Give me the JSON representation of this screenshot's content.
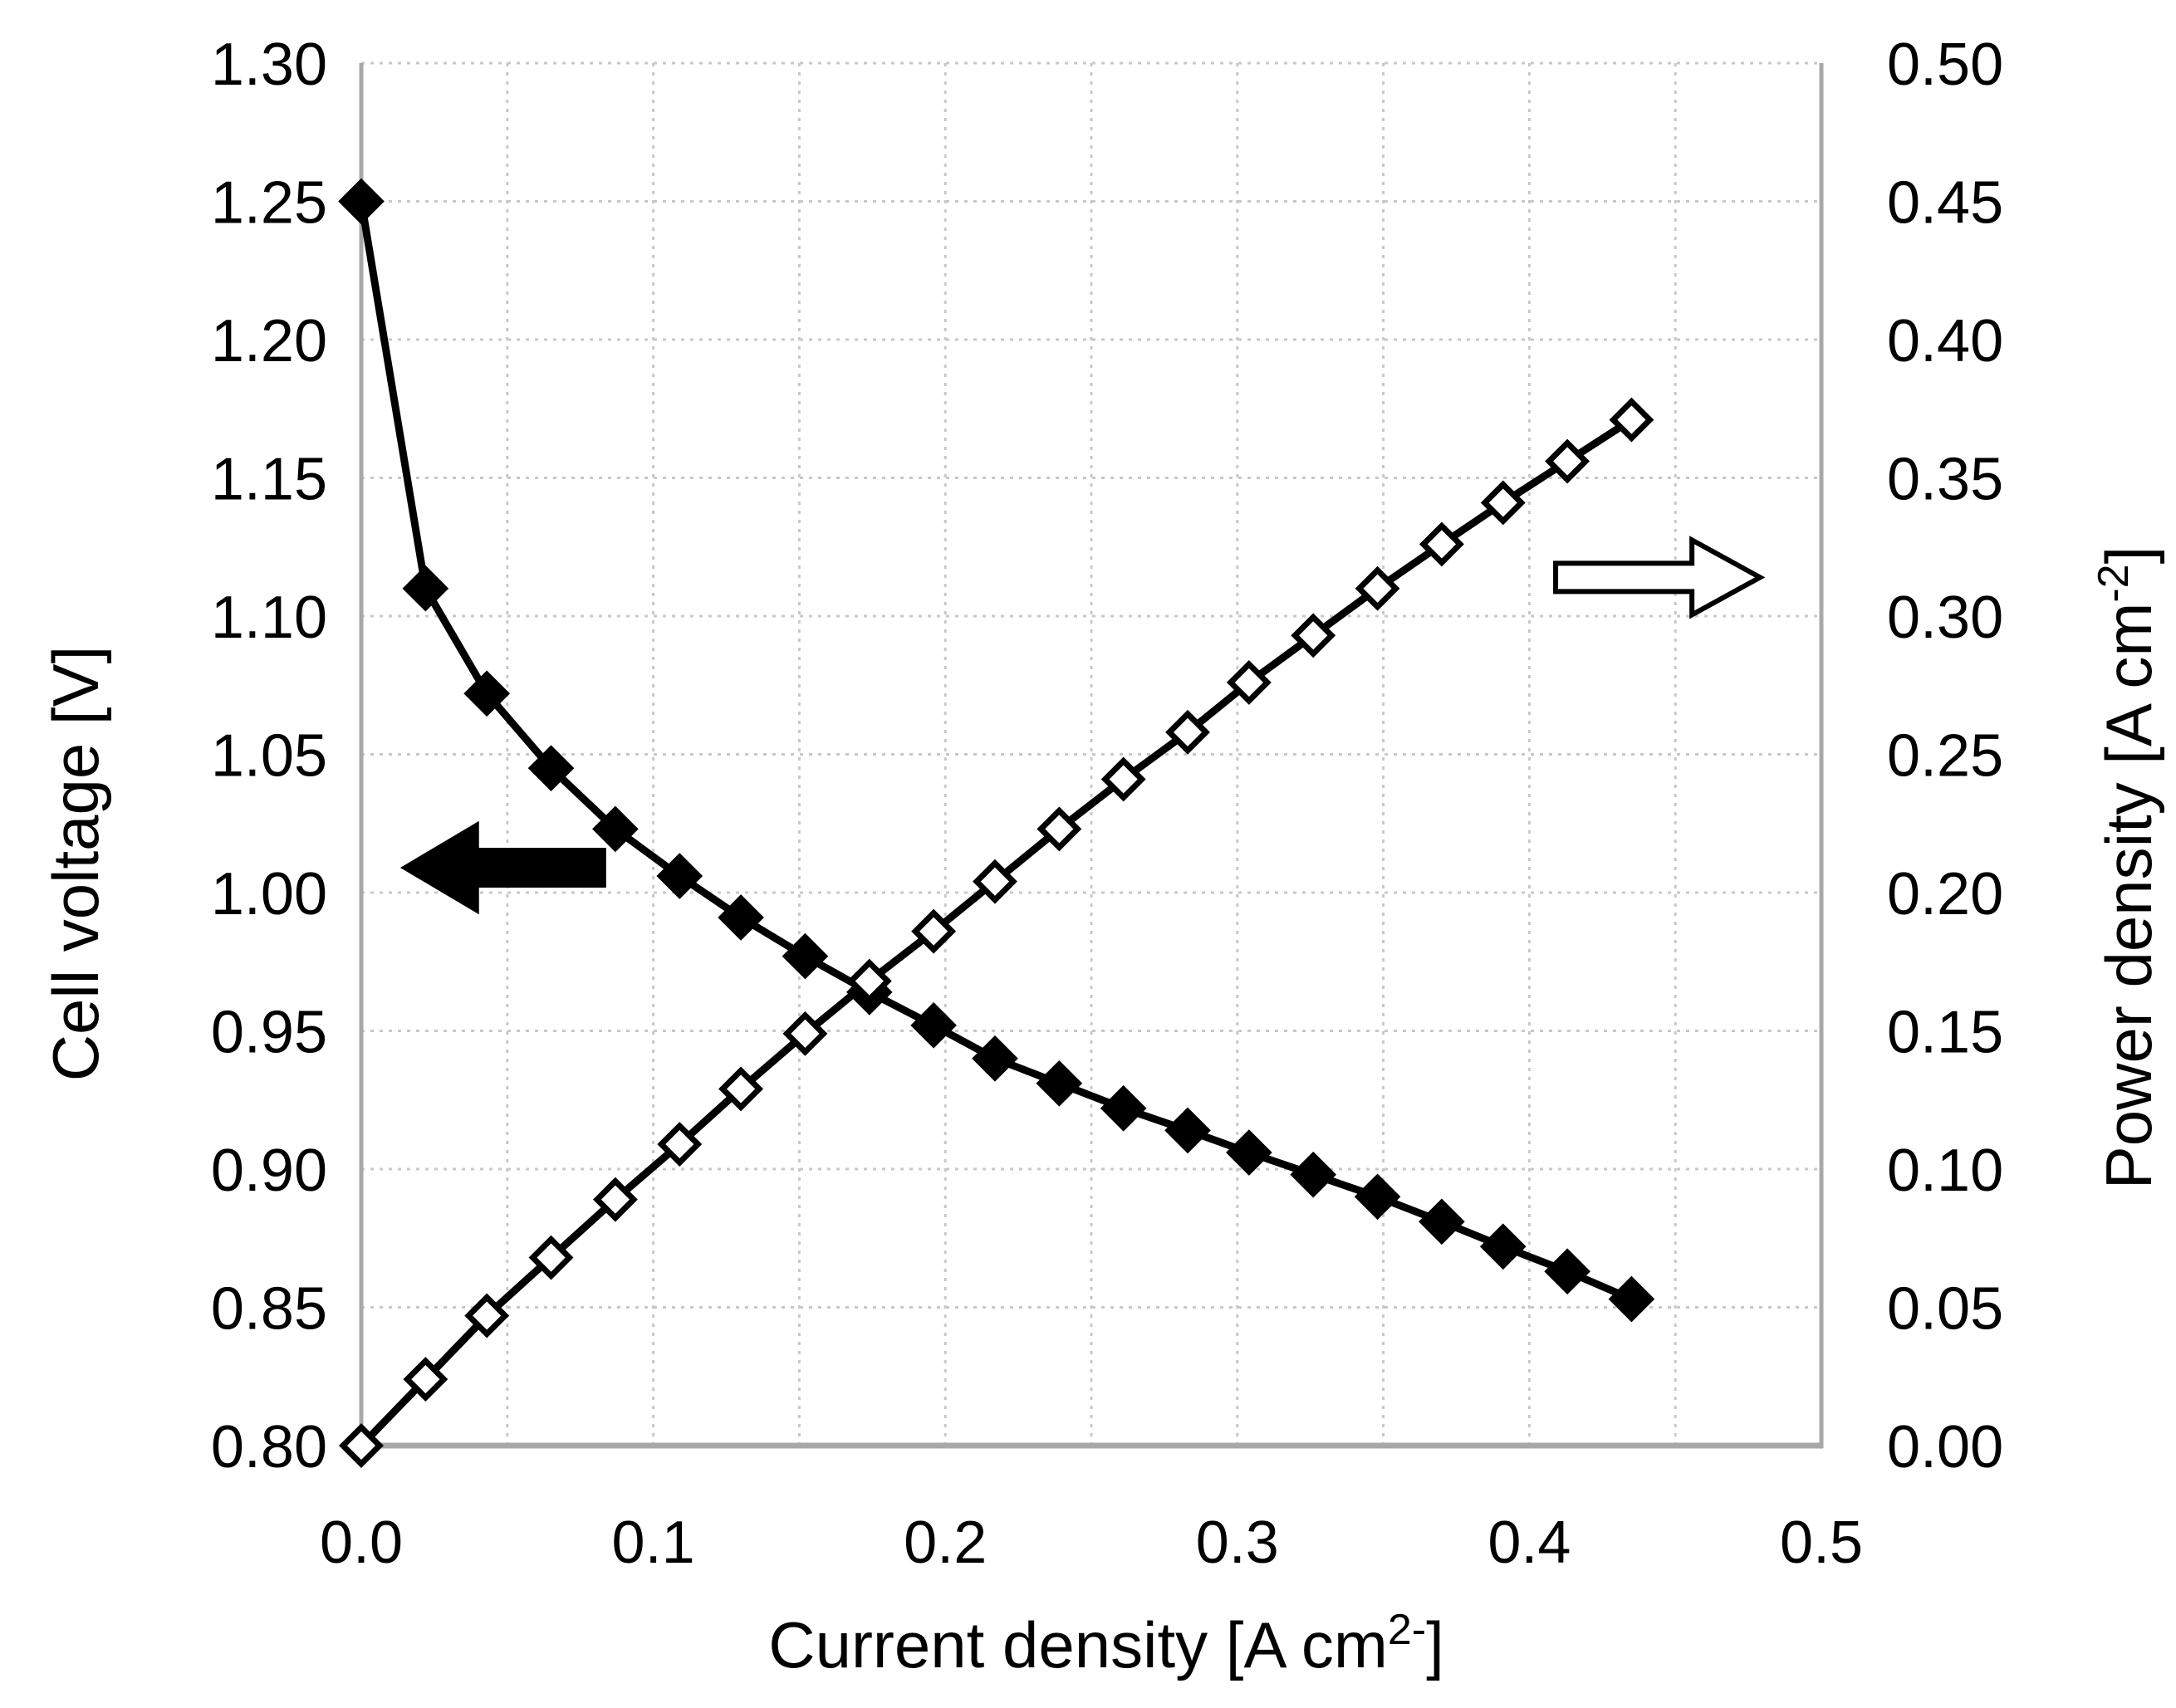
{
  "chart_data": {
    "type": "line",
    "description": "Fuel cell polarization curve: cell voltage and power density versus current density",
    "x_values": [
      0.0,
      0.022,
      0.043,
      0.065,
      0.087,
      0.109,
      0.13,
      0.152,
      0.174,
      0.196,
      0.217,
      0.239,
      0.261,
      0.283,
      0.304,
      0.326,
      0.348,
      0.37,
      0.391,
      0.413,
      0.435
    ],
    "series": [
      {
        "name": "Cell voltage",
        "axis": "left",
        "marker": "filled-diamond",
        "values": [
          1.25,
          1.11,
          1.072,
          1.045,
          1.023,
          1.006,
          0.991,
          0.977,
          0.964,
          0.952,
          0.94,
          0.931,
          0.922,
          0.914,
          0.906,
          0.898,
          0.89,
          0.881,
          0.872,
          0.863,
          0.853
        ]
      },
      {
        "name": "Power density",
        "axis": "right",
        "marker": "open-diamond",
        "values": [
          0.0,
          0.024,
          0.047,
          0.068,
          0.089,
          0.109,
          0.129,
          0.149,
          0.168,
          0.186,
          0.204,
          0.223,
          0.241,
          0.258,
          0.276,
          0.293,
          0.31,
          0.326,
          0.341,
          0.356,
          0.371
        ]
      }
    ],
    "xlabel": {
      "text": "Current density [A cm",
      "sup": "2-",
      "end": "]"
    },
    "ylabel_left": {
      "text": "Cell voltage [V]"
    },
    "ylabel_right": {
      "text": "Power density [A cm",
      "sup": "-2",
      "end": "]"
    },
    "xlim": [
      0.0,
      0.5
    ],
    "ylim_left": [
      0.8,
      1.3
    ],
    "ylim_right": [
      0.0,
      0.5
    ],
    "x_tick_labels": [
      "0.0",
      "0.1",
      "0.2",
      "0.3",
      "0.4",
      "0.5"
    ],
    "y_tick_labels_left": [
      "1.30",
      "1.25",
      "1.20",
      "1.15",
      "1.10",
      "1.05",
      "1.00",
      "0.95",
      "0.90",
      "0.85",
      "0.80"
    ],
    "y_tick_labels_right": [
      "0.50",
      "0.45",
      "0.40",
      "0.35",
      "0.30",
      "0.25",
      "0.20",
      "0.15",
      "0.10",
      "0.05",
      "0.00"
    ],
    "grid": {
      "on": true,
      "x_interval": 0.05,
      "y_interval": 0.05,
      "style": "dotted",
      "color": "#c8c8c8"
    },
    "axis_color": "#a8a8a8",
    "series_color": "#000000",
    "legend": null,
    "annotations": [
      {
        "name": "left-arrow",
        "shape": "arrow",
        "direction": "left",
        "points_to": "left-axis",
        "fill": "black",
        "y_axis": "left",
        "y": 1.009,
        "x_tip": 0.015,
        "x_tail": 0.083
      },
      {
        "name": "right-arrow",
        "shape": "arrow",
        "direction": "right",
        "points_to": "right-axis",
        "fill": "white",
        "y_axis": "right",
        "y": 0.314,
        "x_tip": 0.479,
        "x_tail": 0.409
      }
    ]
  }
}
